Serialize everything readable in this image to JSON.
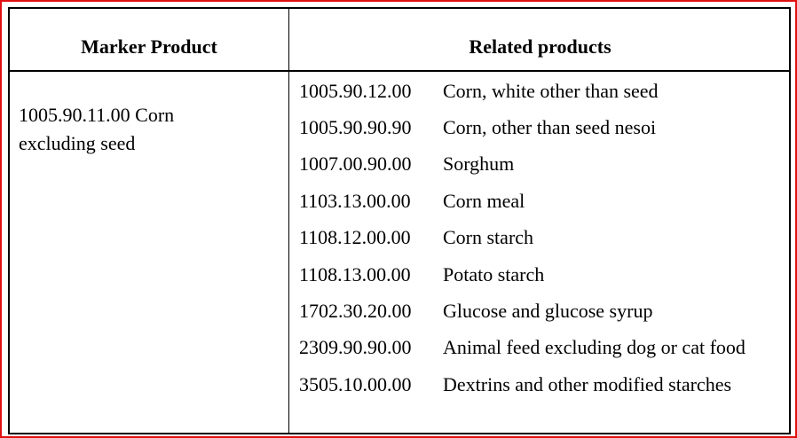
{
  "table": {
    "headers": {
      "marker": "Marker Product",
      "related": "Related products"
    },
    "marker": {
      "line1": "1005.90.11.00 Corn",
      "line2": "excluding seed"
    },
    "related": [
      {
        "code": "1005.90.12.00",
        "description": "Corn, white other than seed"
      },
      {
        "code": "1005.90.90.90",
        "description": "Corn, other than seed nesoi"
      },
      {
        "code": "1007.00.90.00",
        "description": "Sorghum"
      },
      {
        "code": "1103.13.00.00",
        "description": "Corn meal"
      },
      {
        "code": "1108.12.00.00",
        "description": "Corn starch"
      },
      {
        "code": "1108.13.00.00",
        "description": "Potato starch"
      },
      {
        "code": "1702.30.20.00",
        "description": "Glucose and glucose syrup"
      },
      {
        "code": "2309.90.90.00",
        "description": "Animal feed excluding dog or cat food"
      },
      {
        "code": "3505.10.00.00",
        "description": "Dextrins and other modified starches"
      }
    ]
  },
  "colors": {
    "frame": "#e01010",
    "rule": "#000000"
  }
}
